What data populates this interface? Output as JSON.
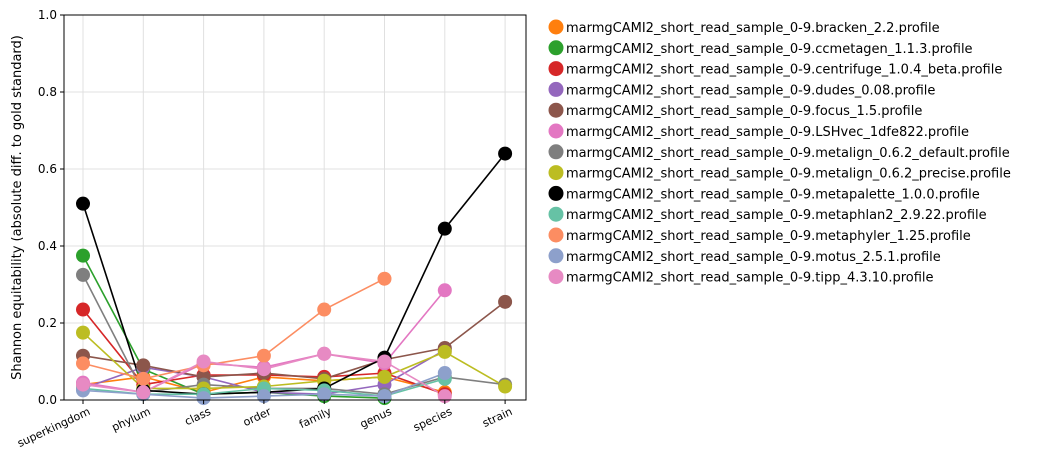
{
  "chart_data": {
    "type": "line",
    "title": "",
    "xlabel": "",
    "ylabel": "Shannon equitability (absolute diff. to gold standard)",
    "categories": [
      "superkingdom",
      "phylum",
      "class",
      "order",
      "family",
      "genus",
      "species",
      "strain"
    ],
    "ylim": [
      0,
      1
    ],
    "yticks": [
      "0.0",
      "0.2",
      "0.4",
      "0.6",
      "0.8",
      "1.0"
    ],
    "grid": true,
    "legend_position": "outside-right",
    "series": [
      {
        "name": "marmgCAMI2_short_read_sample_0-9.bracken_2.2.profile",
        "color": "#ff7f0e",
        "values": [
          0.04,
          0.06,
          0.02,
          0.06,
          0.05,
          0.06,
          0.02,
          null
        ]
      },
      {
        "name": "marmgCAMI2_short_read_sample_0-9.ccmetagen_1.1.3.profile",
        "color": "#2ca02c",
        "values": [
          0.375,
          0.08,
          0.015,
          0.02,
          0.01,
          0.005,
          null,
          null
        ]
      },
      {
        "name": "marmgCAMI2_short_read_sample_0-9.centrifuge_1.0.4_beta.profile",
        "color": "#d62728",
        "values": [
          0.235,
          0.04,
          0.065,
          0.065,
          0.06,
          0.07,
          0.015,
          null
        ]
      },
      {
        "name": "marmgCAMI2_short_read_sample_0-9.dudes_0.08.profile",
        "color": "#9467bd",
        "values": [
          0.03,
          0.085,
          0.06,
          0.02,
          0.015,
          0.04,
          0.13,
          null
        ]
      },
      {
        "name": "marmgCAMI2_short_read_sample_0-9.focus_1.5.profile",
        "color": "#8c564b",
        "values": [
          0.115,
          0.09,
          0.06,
          0.07,
          0.055,
          0.105,
          0.135,
          0.255
        ]
      },
      {
        "name": "marmgCAMI2_short_read_sample_0-9.LSHvec_1dfe822.profile",
        "color": "#e377c2",
        "values": [
          0.045,
          0.02,
          0.095,
          0.085,
          0.12,
          0.095,
          0.285,
          null
        ]
      },
      {
        "name": "marmgCAMI2_short_read_sample_0-9.metalign_0.6.2_default.profile",
        "color": "#7f7f7f",
        "values": [
          0.325,
          0.02,
          0.04,
          0.03,
          0.03,
          0.015,
          0.06,
          0.04
        ]
      },
      {
        "name": "marmgCAMI2_short_read_sample_0-9.metalign_0.6.2_precise.profile",
        "color": "#bcbd22",
        "values": [
          0.175,
          0.03,
          0.03,
          0.035,
          0.05,
          0.06,
          0.125,
          0.035
        ]
      },
      {
        "name": "marmgCAMI2_short_read_sample_0-9.metapalette_1.0.0.profile",
        "color": "#000000",
        "values": [
          0.51,
          0.025,
          0.015,
          0.02,
          0.03,
          0.11,
          0.445,
          0.64
        ]
      },
      {
        "name": "marmgCAMI2_short_read_sample_0-9.metaphlan2_2.9.22.profile",
        "color": "#66c2a5",
        "values": [
          0.03,
          0.015,
          0.015,
          0.03,
          0.025,
          0.01,
          0.055,
          null
        ]
      },
      {
        "name": "marmgCAMI2_short_read_sample_0-9.metaphyler_1.25.profile",
        "color": "#fc8d62",
        "values": [
          0.095,
          0.055,
          0.09,
          0.115,
          0.235,
          0.315,
          null,
          null
        ]
      },
      {
        "name": "marmgCAMI2_short_read_sample_0-9.motus_2.5.1.profile",
        "color": "#8da0cb",
        "values": [
          0.025,
          0.015,
          0.005,
          0.01,
          0.015,
          0.01,
          0.07,
          null
        ]
      },
      {
        "name": "marmgCAMI2_short_read_sample_0-9.tipp_4.3.10.profile",
        "color": "#e78ac3",
        "values": [
          0.04,
          0.02,
          0.1,
          0.08,
          0.12,
          0.1,
          0.01,
          null
        ]
      }
    ]
  }
}
